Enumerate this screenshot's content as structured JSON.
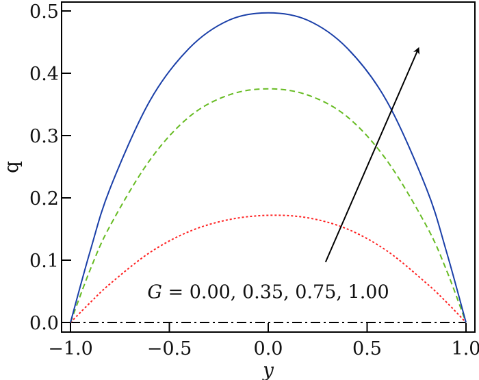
{
  "chart_data": {
    "type": "line",
    "xlabel": "y",
    "ylabel": "q",
    "xlim": [
      -1.08,
      1.05
    ],
    "ylim": [
      -0.015,
      0.52
    ],
    "xticks": [
      -1.0,
      -0.5,
      0.0,
      0.5,
      1.0
    ],
    "xtick_labels": [
      "−1.0",
      "−0.5",
      "0.0",
      "0.5",
      "1.0"
    ],
    "yticks": [
      0.0,
      0.1,
      0.2,
      0.3,
      0.4,
      0.5
    ],
    "ytick_labels": [
      "0.0",
      "0.1",
      "0.2",
      "0.3",
      "0.4",
      "0.5"
    ],
    "grid": false,
    "annotation": {
      "prefix": "G",
      "text": " = 0.00, 0.35, 0.75, 1.00",
      "x": 0.0,
      "y": 0.05
    },
    "arrow": {
      "from": [
        0.29,
        0.097
      ],
      "to": [
        0.76,
        0.44
      ],
      "color": "#000000"
    },
    "x": [
      -1.0,
      -0.9,
      -0.8,
      -0.6,
      -0.4,
      -0.2,
      0.0,
      0.2,
      0.4,
      0.6,
      0.8,
      0.9,
      1.0
    ],
    "series": [
      {
        "G": 0.0,
        "color": "#000000",
        "style": "dashdot",
        "values": [
          0,
          0,
          0,
          0,
          0,
          0,
          0,
          0,
          0,
          0,
          0,
          0,
          0
        ]
      },
      {
        "G": 0.35,
        "color": "#ff2020",
        "style": "dotted",
        "values": [
          0,
          0.032,
          0.062,
          0.112,
          0.146,
          0.165,
          0.172,
          0.168,
          0.15,
          0.115,
          0.063,
          0.033,
          0
        ]
      },
      {
        "G": 0.75,
        "color": "#66bb22",
        "style": "dashed",
        "values": [
          0,
          0.085,
          0.155,
          0.26,
          0.33,
          0.365,
          0.375,
          0.365,
          0.33,
          0.26,
          0.155,
          0.085,
          0
        ]
      },
      {
        "G": 1.0,
        "color": "#1a3fa8",
        "style": "solid",
        "values": [
          0,
          0.115,
          0.215,
          0.355,
          0.44,
          0.485,
          0.497,
          0.485,
          0.44,
          0.355,
          0.215,
          0.115,
          0
        ]
      }
    ]
  }
}
